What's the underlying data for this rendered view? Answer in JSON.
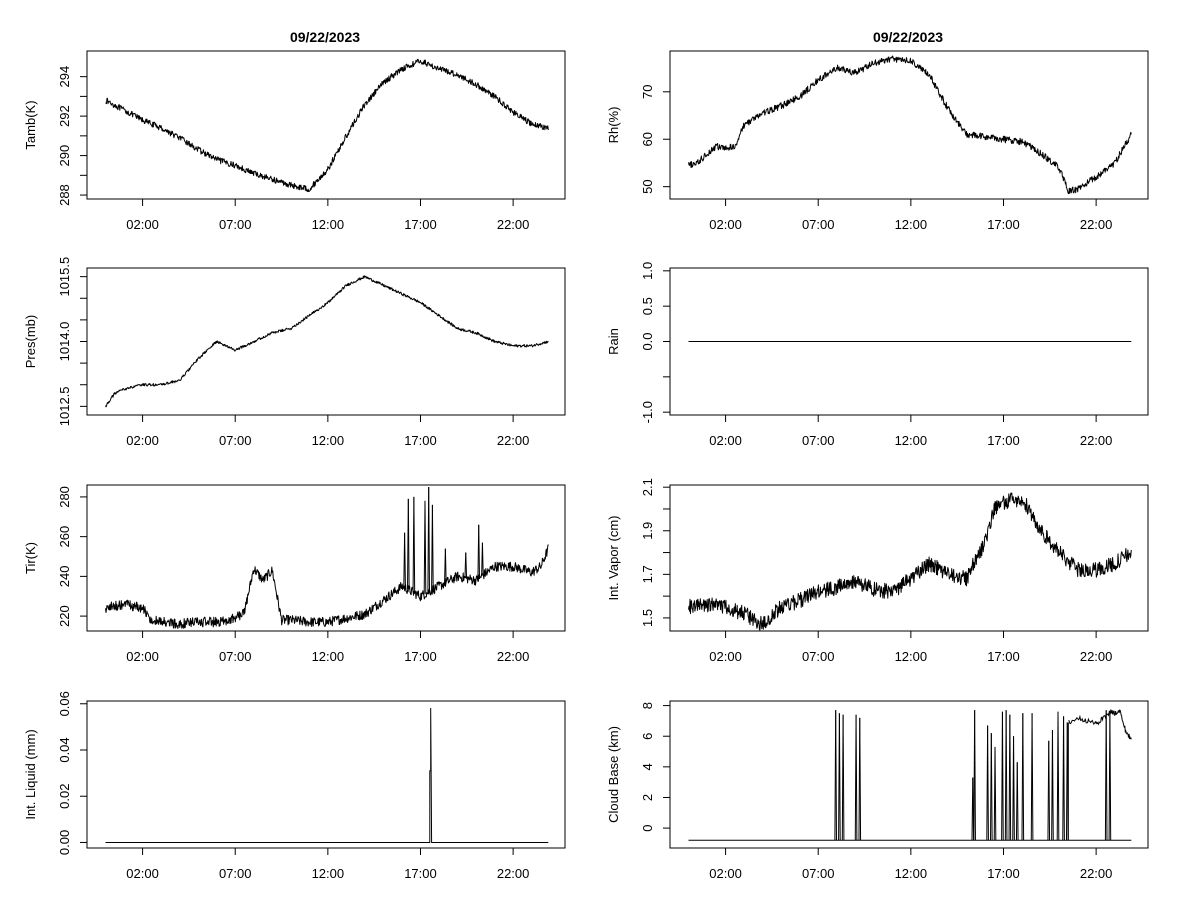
{
  "figure": {
    "left_title": "09/22/2023",
    "right_title": "09/22/2023"
  },
  "chart_data": [
    {
      "id": "tamb",
      "type": "line",
      "ylabel": "Tamb(K)",
      "x_ticks": [
        "02:00",
        "07:00",
        "12:00",
        "17:00",
        "22:00"
      ],
      "x_tick_hours": [
        2,
        7,
        12,
        17,
        22
      ],
      "xlim": [
        -1,
        24.8
      ],
      "ylim": [
        287.8,
        295.3
      ],
      "y_ticks": [
        288,
        290,
        292,
        294
      ],
      "y_minor": [
        289,
        291,
        293
      ],
      "series": [
        {
          "name": "Tamb",
          "x_hours": [
            0,
            1,
            2,
            3,
            4,
            5,
            6,
            7,
            8,
            9,
            10,
            11,
            12,
            13,
            14,
            15,
            16,
            17,
            18,
            19,
            20,
            21,
            22,
            23,
            23.9
          ],
          "values": [
            292.8,
            292.3,
            291.8,
            291.4,
            290.9,
            290.3,
            289.8,
            289.5,
            289.1,
            288.8,
            288.5,
            288.3,
            289.3,
            291.0,
            292.6,
            293.7,
            294.4,
            294.8,
            294.4,
            294.1,
            293.6,
            293.0,
            292.2,
            291.6,
            291.4
          ],
          "noise": 0.15
        }
      ]
    },
    {
      "id": "rh",
      "type": "line",
      "ylabel": "Rh(%)",
      "x_ticks": [
        "02:00",
        "07:00",
        "12:00",
        "17:00",
        "22:00"
      ],
      "x_tick_hours": [
        2,
        7,
        12,
        17,
        22
      ],
      "xlim": [
        -1,
        24.8
      ],
      "ylim": [
        47.4,
        78.6
      ],
      "y_ticks": [
        50,
        60,
        70
      ],
      "y_minor": [],
      "series": [
        {
          "name": "Rh",
          "x_hours": [
            0,
            0.5,
            1,
            1.5,
            2,
            2.5,
            3,
            4,
            5,
            6,
            7,
            8,
            9,
            10,
            11,
            12,
            13,
            14,
            15,
            16,
            17,
            18,
            19,
            20,
            20.5,
            21,
            22,
            23,
            23.9
          ],
          "values": [
            54.5,
            55,
            57,
            58.5,
            58,
            58.5,
            63,
            65.5,
            67,
            69,
            72.5,
            75,
            74,
            76,
            77,
            76.5,
            73.5,
            66.5,
            61,
            60.5,
            60,
            59.5,
            57,
            54,
            49,
            49.5,
            52,
            55,
            61
          ],
          "noise": 0.7
        }
      ]
    },
    {
      "id": "pres",
      "type": "line",
      "ylabel": "Pres(mb)",
      "x_ticks": [
        "02:00",
        "07:00",
        "12:00",
        "17:00",
        "22:00"
      ],
      "x_tick_hours": [
        2,
        7,
        12,
        17,
        22
      ],
      "xlim": [
        -1,
        24.8
      ],
      "ylim": [
        1012.3,
        1015.7
      ],
      "y_ticks": [
        1012.5,
        1014.0,
        1015.5
      ],
      "y_tick_labels": [
        "1012.5",
        "1014.0",
        "1015.5"
      ],
      "y_minor": [
        1013,
        1013.5,
        1014.5,
        1015
      ],
      "series": [
        {
          "name": "Pres",
          "x_hours": [
            0,
            0.5,
            1,
            2,
            3,
            4,
            5,
            6,
            7,
            8,
            9,
            10,
            11,
            12,
            13,
            14,
            15,
            16,
            17,
            18,
            19,
            20,
            21,
            22,
            23,
            23.9
          ],
          "values": [
            1012.5,
            1012.8,
            1012.9,
            1013.0,
            1013.0,
            1013.1,
            1013.6,
            1014.0,
            1013.8,
            1014.0,
            1014.2,
            1014.3,
            1014.6,
            1014.9,
            1015.3,
            1015.5,
            1015.3,
            1015.1,
            1014.9,
            1014.6,
            1014.3,
            1014.2,
            1014.0,
            1013.9,
            1013.9,
            1014.0
          ],
          "noise": 0.03
        }
      ]
    },
    {
      "id": "rain",
      "type": "line",
      "ylabel": "Rain",
      "x_ticks": [
        "02:00",
        "07:00",
        "12:00",
        "17:00",
        "22:00"
      ],
      "x_tick_hours": [
        2,
        7,
        12,
        17,
        22
      ],
      "xlim": [
        -1,
        24.8
      ],
      "ylim": [
        -1.04,
        1.04
      ],
      "y_ticks": [
        -1.0,
        0.0,
        0.5,
        1.0
      ],
      "y_tick_labels": [
        "-1.0",
        "0.0",
        "0.5",
        "1.0"
      ],
      "y_minor": [
        -0.5
      ],
      "series": [
        {
          "name": "Rain",
          "x_hours": [
            0,
            23.9
          ],
          "values": [
            0,
            0
          ],
          "noise": 0
        }
      ]
    },
    {
      "id": "tir",
      "type": "line",
      "ylabel": "Tir(K)",
      "x_ticks": [
        "02:00",
        "07:00",
        "12:00",
        "17:00",
        "22:00"
      ],
      "x_tick_hours": [
        2,
        7,
        12,
        17,
        22
      ],
      "xlim": [
        -1,
        24.8
      ],
      "ylim": [
        212.5,
        286
      ],
      "y_ticks": [
        220,
        240,
        260,
        280
      ],
      "y_minor": [],
      "series": [
        {
          "name": "Tir",
          "x_hours": [
            0,
            1,
            2,
            2.5,
            3,
            4,
            5,
            6,
            7,
            7.5,
            8,
            8.5,
            9,
            9.5,
            10,
            11,
            12,
            13,
            14,
            15,
            16,
            17,
            18,
            19,
            20,
            21,
            22,
            23,
            23.5,
            23.9
          ],
          "values": [
            224,
            226,
            224,
            218,
            217,
            216,
            217,
            217,
            219,
            222,
            244,
            238,
            243,
            218,
            218,
            217,
            217,
            219,
            221,
            228,
            235,
            230,
            235,
            240,
            238,
            245,
            245,
            242,
            245,
            254
          ],
          "noise": 2.5,
          "spikes": [
            [
              16.1,
              262
            ],
            [
              16.3,
              279
            ],
            [
              16.6,
              280
            ],
            [
              17.2,
              278
            ],
            [
              17.4,
              285
            ],
            [
              17.6,
              276
            ],
            [
              18.3,
              254
            ],
            [
              19.4,
              252
            ],
            [
              20.1,
              266
            ],
            [
              20.3,
              257
            ]
          ]
        }
      ]
    },
    {
      "id": "vapor",
      "type": "line",
      "ylabel": "Int. Vapor (cm)",
      "x_ticks": [
        "02:00",
        "07:00",
        "12:00",
        "17:00",
        "22:00"
      ],
      "x_tick_hours": [
        2,
        7,
        12,
        17,
        22
      ],
      "xlim": [
        -1,
        24.8
      ],
      "ylim": [
        1.44,
        2.11
      ],
      "y_ticks": [
        1.5,
        1.7,
        1.9,
        2.1
      ],
      "y_tick_labels": [
        "1.5",
        "1.7",
        "1.9",
        "2.1"
      ],
      "y_minor": [
        1.6,
        1.8,
        2.0
      ],
      "series": [
        {
          "name": "Vapor",
          "x_hours": [
            0,
            1,
            2,
            3,
            4,
            5,
            6,
            7,
            8,
            9,
            10,
            11,
            12,
            13,
            14,
            15,
            16,
            16.5,
            17,
            18,
            19,
            20,
            21,
            22,
            23,
            23.9
          ],
          "values": [
            1.55,
            1.56,
            1.55,
            1.52,
            1.47,
            1.55,
            1.58,
            1.62,
            1.64,
            1.67,
            1.63,
            1.62,
            1.68,
            1.75,
            1.7,
            1.68,
            1.85,
            2.0,
            2.03,
            2.05,
            1.9,
            1.8,
            1.72,
            1.72,
            1.75,
            1.8
          ],
          "noise": 0.035
        }
      ]
    },
    {
      "id": "liquid",
      "type": "line",
      "ylabel": "Int. Liquid (mm)",
      "x_ticks": [
        "02:00",
        "07:00",
        "12:00",
        "17:00",
        "22:00"
      ],
      "x_tick_hours": [
        2,
        7,
        12,
        17,
        22
      ],
      "xlim": [
        -1,
        24.8
      ],
      "ylim": [
        -0.0024,
        0.0612
      ],
      "y_ticks": [
        0.0,
        0.02,
        0.04,
        0.06
      ],
      "y_tick_labels": [
        "0.00",
        "0.02",
        "0.04",
        "0.06"
      ],
      "y_minor": [],
      "series": [
        {
          "name": "Liquid",
          "x_hours": [
            0,
            17.45,
            17.5,
            17.5,
            17.55,
            17.55,
            17.6,
            23.9
          ],
          "values": [
            0,
            0,
            0,
            0.031,
            0.031,
            0.058,
            0,
            0
          ],
          "noise": 0
        }
      ]
    },
    {
      "id": "cloudbase",
      "type": "line",
      "ylabel": "Cloud Base (km)",
      "x_ticks": [
        "02:00",
        "07:00",
        "12:00",
        "17:00",
        "22:00"
      ],
      "x_tick_hours": [
        2,
        7,
        12,
        17,
        22
      ],
      "xlim": [
        -1,
        24.8
      ],
      "ylim": [
        -1.3,
        8.3
      ],
      "y_ticks": [
        0,
        2,
        4,
        6,
        8
      ],
      "y_minor": [],
      "baseline": -0.8,
      "series": [
        {
          "name": "CloudBase",
          "x_hours": [
            0,
            23.9
          ],
          "values": [
            -0.8,
            -0.8
          ],
          "noise": 0,
          "spikes": [
            [
              7.9,
              7.7
            ],
            [
              8.1,
              7.5
            ],
            [
              8.3,
              7.4
            ],
            [
              9.0,
              7.4
            ],
            [
              9.2,
              7.2
            ],
            [
              15.3,
              3.3
            ],
            [
              15.4,
              7.7
            ],
            [
              16.1,
              6.7
            ],
            [
              16.3,
              6.2
            ],
            [
              16.5,
              5.3
            ],
            [
              16.9,
              7.6
            ],
            [
              17.1,
              7.7
            ],
            [
              17.3,
              7.4
            ],
            [
              17.5,
              6.0
            ],
            [
              17.7,
              4.3
            ],
            [
              18.0,
              7.5
            ],
            [
              18.5,
              7.5
            ],
            [
              19.4,
              5.7
            ],
            [
              19.6,
              6.4
            ],
            [
              19.9,
              7.6
            ],
            [
              20.2,
              7.3
            ],
            [
              20.4,
              6.9
            ],
            [
              22.5,
              7.7
            ],
            [
              22.7,
              7.6
            ]
          ],
          "segments": [
            [
              [
                20.5,
                6.9
              ],
              [
                21.0,
                7.2
              ],
              [
                21.5,
                7.0
              ],
              [
                22.0,
                6.8
              ],
              [
                22.3,
                7.1
              ],
              [
                22.8,
                7.6
              ],
              [
                23.0,
                7.5
              ],
              [
                23.3,
                7.7
              ],
              [
                23.6,
                6.3
              ],
              [
                23.9,
                5.8
              ]
            ]
          ]
        }
      ]
    }
  ]
}
